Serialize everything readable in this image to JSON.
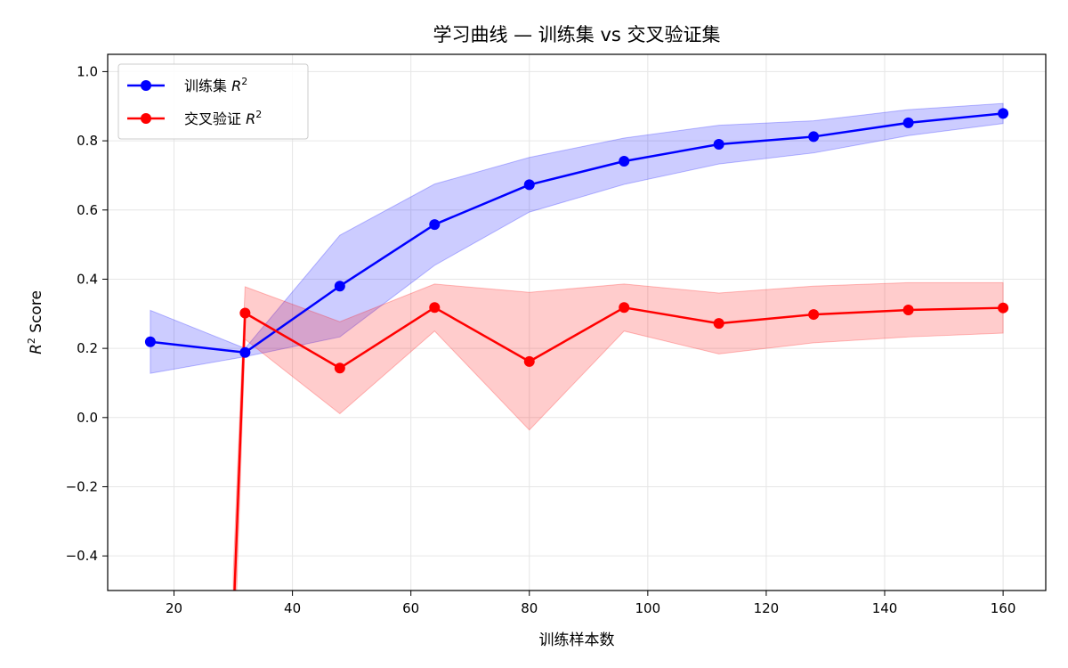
{
  "chart_data": {
    "type": "line",
    "title": "学习曲线 — 训练集 vs 交叉验证集",
    "xlabel": "训练样本数",
    "ylabel_main": "R",
    "ylabel_sup": "2",
    "ylabel_rest": " Score",
    "xlim": [
      8.8,
      167.2
    ],
    "ylim": [
      -0.5,
      1.05
    ],
    "xticks": [
      20,
      40,
      60,
      80,
      100,
      120,
      140,
      160
    ],
    "yticks": [
      -0.4,
      -0.2,
      0.0,
      0.2,
      0.4,
      0.6,
      0.8,
      1.0
    ],
    "xtick_labels": [
      "20",
      "40",
      "60",
      "80",
      "100",
      "120",
      "140",
      "160"
    ],
    "ytick_labels": [
      "−0.4",
      "−0.2",
      "0.0",
      "0.2",
      "0.4",
      "0.6",
      "0.8",
      "1.0"
    ],
    "grid": true,
    "legend_position": "top-left",
    "series": [
      {
        "name_main": "训练集 ",
        "name_math": "R",
        "name_sup": "2",
        "color": "#0000ff",
        "x": [
          16,
          32,
          48,
          64,
          80,
          96,
          112,
          128,
          144,
          160
        ],
        "values": [
          0.219,
          0.188,
          0.38,
          0.558,
          0.673,
          0.741,
          0.79,
          0.812,
          0.852,
          0.879
        ],
        "band_upper": [
          0.31,
          0.2,
          0.527,
          0.675,
          0.752,
          0.808,
          0.845,
          0.858,
          0.89,
          0.908
        ],
        "band_lower": [
          0.128,
          0.176,
          0.233,
          0.44,
          0.594,
          0.674,
          0.733,
          0.765,
          0.815,
          0.85
        ]
      },
      {
        "name_main": "交叉验证 ",
        "name_math": "R",
        "name_sup": "2",
        "color": "#ff0000",
        "x": [
          30,
          32,
          48,
          64,
          80,
          96,
          112,
          128,
          144,
          160
        ],
        "values": [
          -0.6,
          0.302,
          0.143,
          0.318,
          0.162,
          0.318,
          0.272,
          0.298,
          0.311,
          0.317
        ],
        "band_upper": [
          -0.45,
          0.378,
          0.277,
          0.386,
          0.362,
          0.386,
          0.36,
          0.38,
          0.39,
          0.39
        ],
        "band_lower": [
          -0.8,
          0.226,
          0.011,
          0.25,
          -0.036,
          0.25,
          0.184,
          0.216,
          0.233,
          0.244
        ]
      }
    ]
  }
}
